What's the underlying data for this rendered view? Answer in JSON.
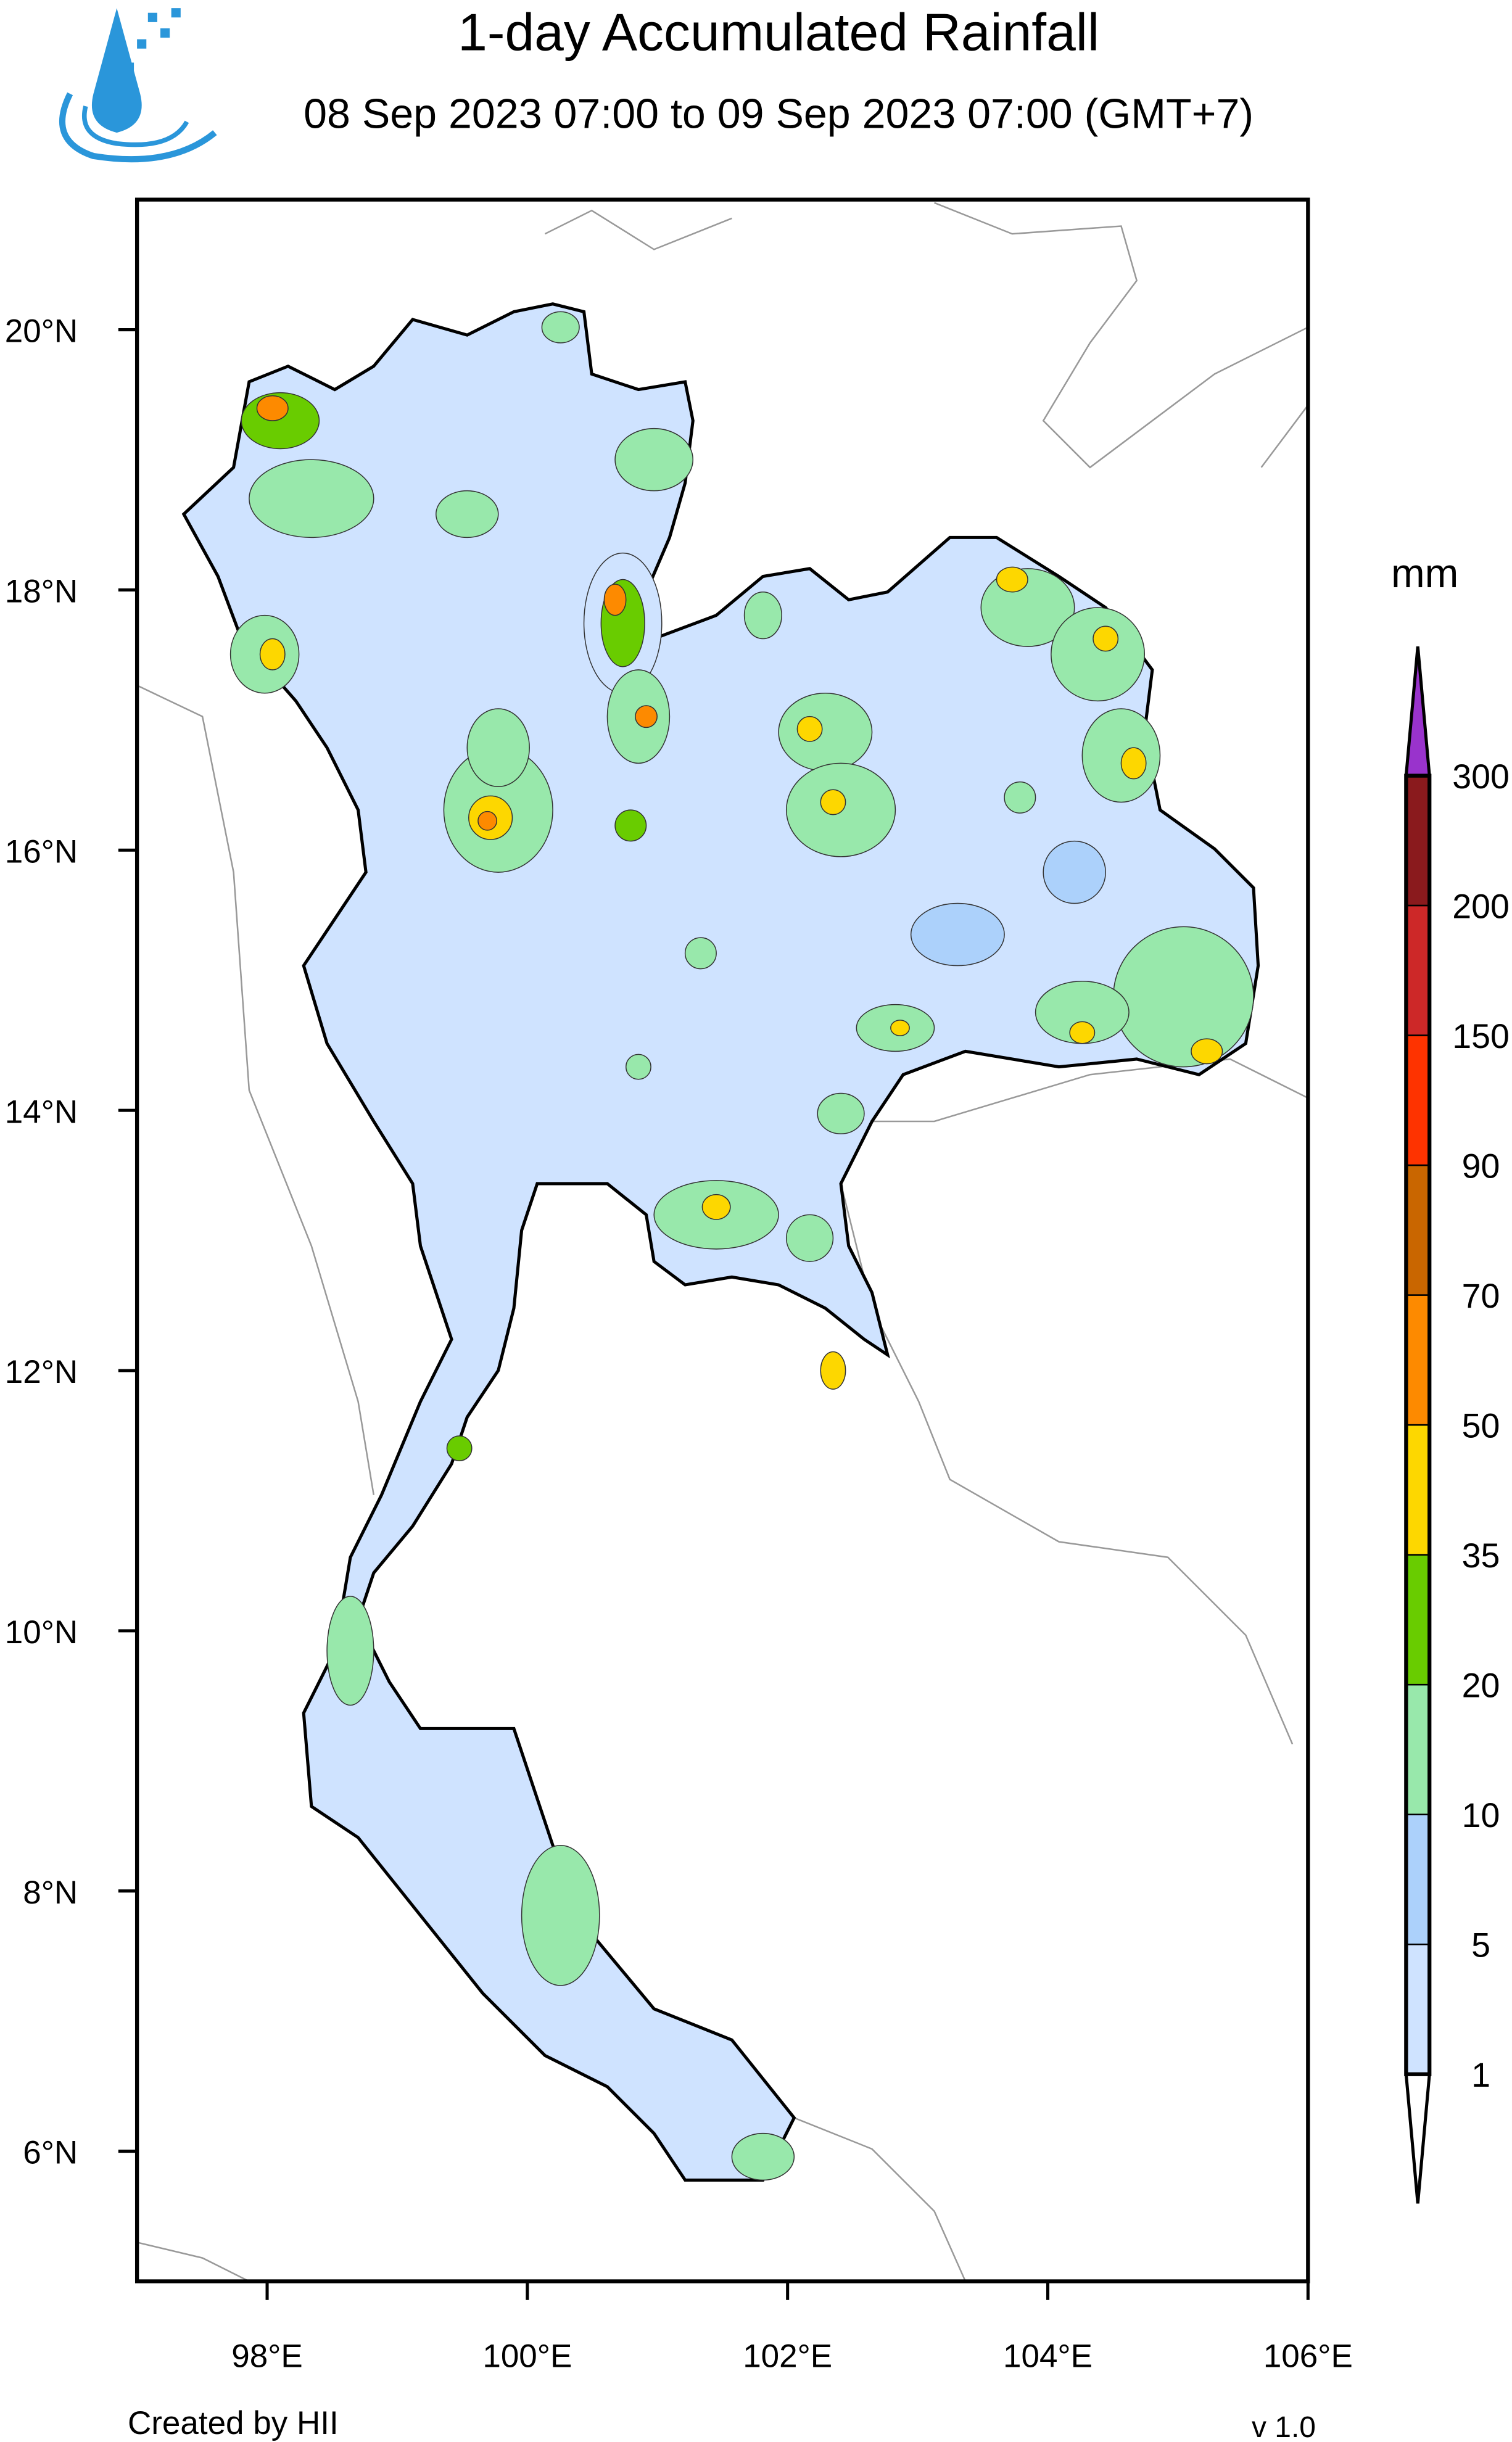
{
  "header": {
    "title": "1-day Accumulated Rainfall",
    "subtitle": "08 Sep 2023 07:00 to 09 Sep 2023 07:00 (GMT+7)",
    "logo_icon": "hii-water-drop-logo"
  },
  "map": {
    "lon_range": [
      97,
      106
    ],
    "lat_range": [
      5,
      21
    ],
    "lon_ticks": [
      "98°E",
      "100°E",
      "102°E",
      "104°E",
      "106°E"
    ],
    "lon_tick_values": [
      98,
      100,
      102,
      104,
      106
    ],
    "lat_ticks": [
      "20°N",
      "18°N",
      "16°N",
      "14°N",
      "12°N",
      "10°N",
      "8°N",
      "6°N"
    ],
    "lat_tick_values": [
      20,
      18,
      16,
      14,
      12,
      10,
      8,
      6
    ],
    "land_fill_color": "#cfe3ff"
  },
  "colorbar": {
    "unit": "mm",
    "labels": [
      "300",
      "200",
      "150",
      "90",
      "70",
      "50",
      "35",
      "20",
      "10",
      "5",
      "1"
    ],
    "colors": [
      "#8a1a1d",
      "#cd2828",
      "#fe3300",
      "#c96600",
      "#fd8a00",
      "#fdd700",
      "#69cc00",
      "#98e8ab",
      "#acd1fb",
      "#cfe3ff"
    ],
    "over_color": "#9933cc",
    "under_color": "#ffffff"
  },
  "footer": {
    "credit": "Created by HII",
    "version": "v 1.0"
  }
}
